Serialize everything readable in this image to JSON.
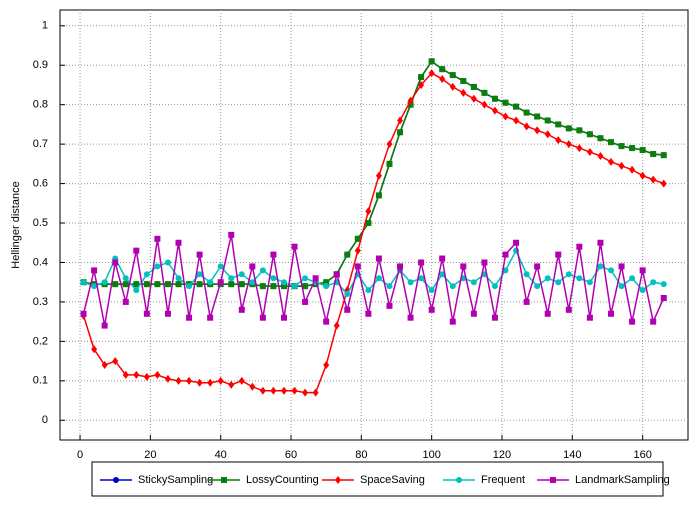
{
  "chart_data": {
    "type": "line",
    "ylabel": "Hellinger distance",
    "xlim": [
      -5.7,
      172.9
    ],
    "ylim": [
      -0.05,
      1.04
    ],
    "xticks": [
      0,
      20,
      40,
      60,
      80,
      100,
      120,
      140,
      160
    ],
    "yticks": [
      0,
      0.1,
      0.2,
      0.3,
      0.4,
      0.5,
      0.6,
      0.7,
      0.8,
      0.9,
      1
    ],
    "grid": true,
    "legend": "bottom",
    "x": [
      1,
      4,
      7,
      10,
      13,
      16,
      19,
      22,
      25,
      28,
      31,
      34,
      37,
      40,
      43,
      46,
      49,
      52,
      55,
      58,
      61,
      64,
      67,
      70,
      73,
      76,
      79,
      82,
      85,
      88,
      91,
      94,
      97,
      100,
      103,
      106,
      109,
      112,
      115,
      118,
      121,
      124,
      127,
      130,
      133,
      136,
      139,
      142,
      145,
      148,
      151,
      154,
      157,
      160,
      163,
      166
    ],
    "series": [
      {
        "name": "StickySampling",
        "color": "#0000cc",
        "marker": "circle",
        "values": [
          0.35,
          0.345,
          0.345,
          0.345,
          0.345,
          0.345,
          0.345,
          0.345,
          0.345,
          0.345,
          0.345,
          0.345,
          0.345,
          0.345,
          0.345,
          0.345,
          0.345,
          0.34,
          0.34,
          0.34,
          0.34,
          0.34,
          0.345,
          0.35,
          0.37,
          0.42,
          0.46,
          0.5,
          0.57,
          0.65,
          0.73,
          0.8,
          0.87,
          0.91,
          0.89,
          0.875,
          0.86,
          0.845,
          0.83,
          0.815,
          0.805,
          0.795,
          0.78,
          0.77,
          0.76,
          0.75,
          0.74,
          0.735,
          0.725,
          0.715,
          0.705,
          0.695,
          0.69,
          0.685,
          0.675,
          0.672
        ]
      },
      {
        "name": "LossyCounting",
        "color": "#0a7f0a",
        "marker": "square",
        "values": [
          0.35,
          0.345,
          0.345,
          0.345,
          0.345,
          0.345,
          0.345,
          0.345,
          0.345,
          0.345,
          0.345,
          0.345,
          0.345,
          0.345,
          0.345,
          0.345,
          0.345,
          0.34,
          0.34,
          0.34,
          0.34,
          0.34,
          0.345,
          0.35,
          0.37,
          0.42,
          0.46,
          0.5,
          0.57,
          0.65,
          0.73,
          0.8,
          0.87,
          0.91,
          0.89,
          0.875,
          0.86,
          0.845,
          0.83,
          0.815,
          0.805,
          0.795,
          0.78,
          0.77,
          0.76,
          0.75,
          0.74,
          0.735,
          0.725,
          0.715,
          0.705,
          0.695,
          0.69,
          0.685,
          0.675,
          0.672
        ]
      },
      {
        "name": "SpaceSaving",
        "color": "#ff0000",
        "marker": "diamond",
        "values": [
          0.265,
          0.18,
          0.14,
          0.15,
          0.115,
          0.115,
          0.11,
          0.115,
          0.105,
          0.1,
          0.1,
          0.095,
          0.095,
          0.1,
          0.09,
          0.1,
          0.085,
          0.075,
          0.075,
          0.075,
          0.075,
          0.07,
          0.07,
          0.14,
          0.24,
          0.33,
          0.43,
          0.53,
          0.62,
          0.7,
          0.76,
          0.81,
          0.85,
          0.88,
          0.865,
          0.845,
          0.83,
          0.815,
          0.8,
          0.785,
          0.77,
          0.76,
          0.745,
          0.735,
          0.725,
          0.71,
          0.7,
          0.69,
          0.68,
          0.67,
          0.655,
          0.645,
          0.635,
          0.62,
          0.61,
          0.6
        ]
      },
      {
        "name": "Frequent",
        "color": "#00c0c0",
        "marker": "circle",
        "values": [
          0.35,
          0.34,
          0.35,
          0.41,
          0.36,
          0.33,
          0.37,
          0.39,
          0.4,
          0.36,
          0.34,
          0.37,
          0.35,
          0.39,
          0.36,
          0.37,
          0.35,
          0.38,
          0.36,
          0.35,
          0.34,
          0.36,
          0.35,
          0.34,
          0.35,
          0.32,
          0.37,
          0.33,
          0.36,
          0.34,
          0.38,
          0.35,
          0.36,
          0.33,
          0.37,
          0.34,
          0.36,
          0.35,
          0.37,
          0.34,
          0.38,
          0.43,
          0.37,
          0.34,
          0.36,
          0.35,
          0.37,
          0.36,
          0.35,
          0.39,
          0.38,
          0.34,
          0.36,
          0.33,
          0.35,
          0.345
        ]
      },
      {
        "name": "LandmarkSampling",
        "color": "#b000b0",
        "marker": "square",
        "values": [
          0.27,
          0.38,
          0.24,
          0.4,
          0.3,
          0.43,
          0.27,
          0.46,
          0.27,
          0.45,
          0.26,
          0.42,
          0.26,
          0.35,
          0.47,
          0.28,
          0.39,
          0.26,
          0.42,
          0.26,
          0.44,
          0.3,
          0.36,
          0.25,
          0.37,
          0.28,
          0.39,
          0.27,
          0.41,
          0.29,
          0.39,
          0.26,
          0.4,
          0.28,
          0.41,
          0.25,
          0.39,
          0.27,
          0.4,
          0.26,
          0.42,
          0.45,
          0.3,
          0.39,
          0.27,
          0.42,
          0.28,
          0.44,
          0.26,
          0.45,
          0.27,
          0.39,
          0.25,
          0.38,
          0.25,
          0.31
        ]
      }
    ]
  }
}
